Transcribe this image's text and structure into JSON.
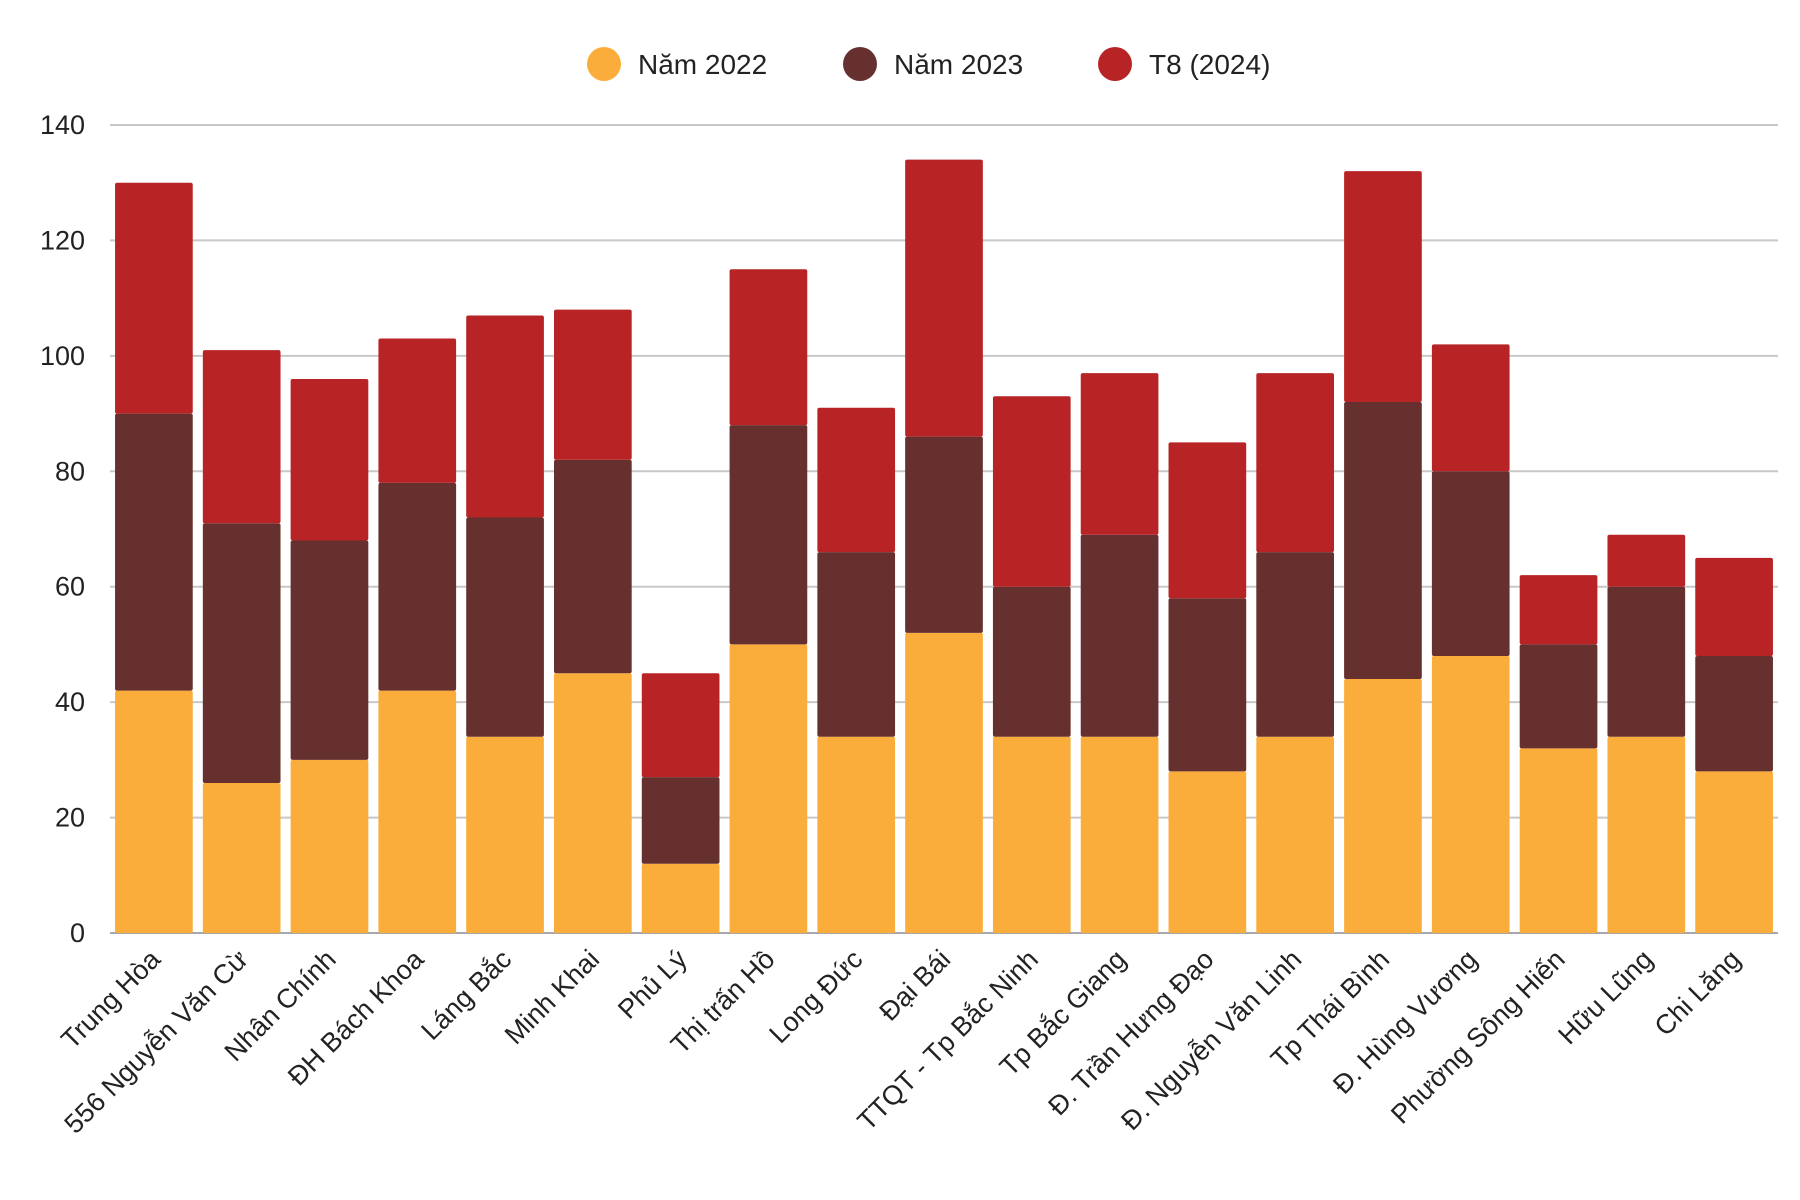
{
  "chart_data": {
    "type": "bar",
    "stacked": true,
    "categories": [
      "Trung Hòa",
      "556 Nguyễn Văn Cừ",
      "Nhân Chính",
      "ĐH Bách Khoa",
      "Láng Bắc",
      "Minh Khai",
      "Phủ Lý",
      "Thị trấn Hồ",
      "Long Đức",
      "Đại Bái",
      "TTQT - Tp Bắc Ninh",
      "Tp Bắc Giang",
      "Đ. Trần Hưng Đạo",
      "Đ. Nguyễn Văn Linh",
      "Tp Thái Bình",
      "Đ. Hùng Vương",
      "Phường Sông Hiến",
      "Hữu Lũng",
      "Chi Lăng"
    ],
    "series": [
      {
        "name": "Năm 2022",
        "color": "#FBAD3C",
        "values": [
          42,
          26,
          30,
          42,
          34,
          45,
          12,
          50,
          34,
          52,
          34,
          34,
          28,
          34,
          44,
          48,
          32,
          34,
          28
        ]
      },
      {
        "name": "Năm 2023",
        "color": "#66302E",
        "values": [
          48,
          45,
          38,
          36,
          38,
          37,
          15,
          38,
          32,
          34,
          26,
          35,
          30,
          32,
          48,
          32,
          18,
          26,
          20
        ]
      },
      {
        "name": "T8 (2024)",
        "color": "#B82426",
        "values": [
          40,
          30,
          28,
          25,
          35,
          26,
          18,
          27,
          25,
          48,
          33,
          28,
          27,
          31,
          40,
          22,
          12,
          9,
          17
        ]
      }
    ],
    "yticks": [
      "0",
      "20",
      "40",
      "60",
      "80",
      "100",
      "120",
      "140"
    ],
    "ylim": [
      0,
      140
    ],
    "grid": true,
    "legend_position": "top-center",
    "title": "",
    "xlabel": "",
    "ylabel": ""
  }
}
